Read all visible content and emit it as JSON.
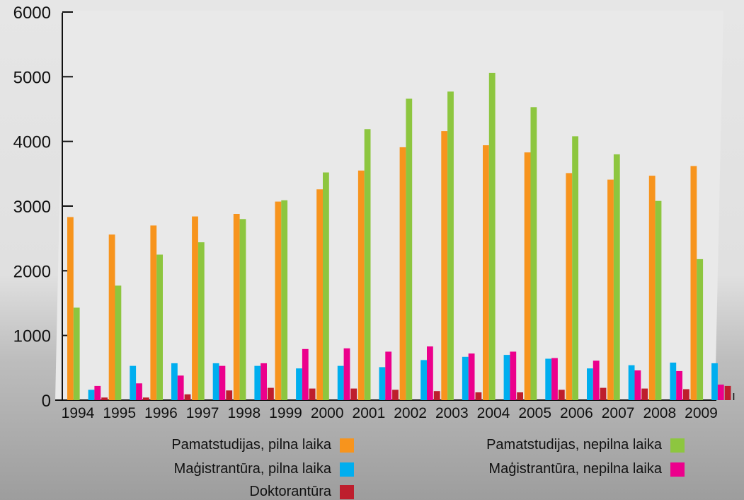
{
  "chart_data": {
    "type": "bar",
    "categories": [
      "1994",
      "1995",
      "1996",
      "1997",
      "1998",
      "1999",
      "2000",
      "2001",
      "2002",
      "2003",
      "2004",
      "2005",
      "2006",
      "2007",
      "2008",
      "2009"
    ],
    "ylim": [
      0,
      6000
    ],
    "yticks": [
      "0",
      "1000",
      "2000",
      "3000",
      "4000",
      "5000",
      "6000"
    ],
    "grid": false,
    "legend_position": "bottom",
    "series": [
      {
        "name": "Pamatstudijas, pilna laika",
        "color": "#f7941d",
        "values": [
          2830,
          2560,
          2700,
          2840,
          2880,
          3070,
          3260,
          3550,
          3910,
          4160,
          3940,
          3830,
          3510,
          3410,
          3470,
          3620
        ]
      },
      {
        "name": "Pamatstudijas, nepilna laika",
        "color": "#8dc63f",
        "values": [
          1430,
          1770,
          2250,
          2440,
          2800,
          3090,
          3520,
          4190,
          4660,
          4770,
          5060,
          4530,
          4080,
          3800,
          3080,
          2180
        ]
      },
      {
        "name": "Maģistrantūra, pilna laika",
        "color": "#00aeef",
        "values": [
          160,
          530,
          570,
          570,
          530,
          490,
          530,
          510,
          620,
          670,
          700,
          640,
          490,
          540,
          580,
          570
        ]
      },
      {
        "name": "Maģistrantūra, nepilna laika",
        "color": "#ec008c",
        "values": [
          220,
          260,
          380,
          530,
          570,
          790,
          800,
          750,
          830,
          720,
          750,
          650,
          610,
          460,
          450,
          240
        ]
      },
      {
        "name": "Doktorantūra",
        "color": "#be1e2d",
        "values": [
          40,
          40,
          90,
          150,
          190,
          180,
          180,
          160,
          140,
          120,
          120,
          160,
          190,
          180,
          170,
          220
        ]
      }
    ]
  }
}
